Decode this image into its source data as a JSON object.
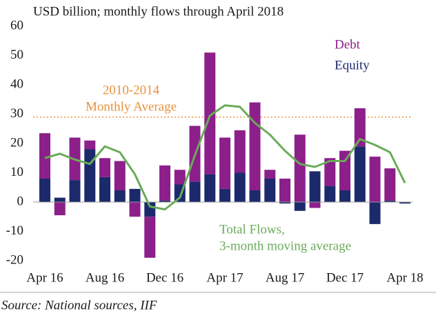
{
  "chart_data": {
    "type": "stacked_bar_line",
    "title": "USD billion; monthly flows through April 2018",
    "source": "Source: National sources, IIF",
    "categories": [
      "Apr 16",
      null,
      null,
      null,
      "Aug 16",
      null,
      null,
      null,
      "Dec 16",
      null,
      null,
      null,
      "Apr 17",
      null,
      null,
      null,
      "Aug 17",
      null,
      null,
      null,
      "Dec 17",
      null,
      null,
      null,
      "Apr 18"
    ],
    "series": [
      {
        "name": "Equity",
        "color": "#1c2a6c",
        "values": [
          8,
          1.5,
          7.5,
          18,
          8.5,
          4,
          4.5,
          -5,
          0.5,
          6,
          7,
          9.5,
          4.5,
          10,
          4,
          8,
          -0.5,
          -3,
          10.5,
          5.5,
          4,
          19,
          -7.5,
          0.5,
          -0.5
        ]
      },
      {
        "name": "Debt",
        "color": "#8c1f8a",
        "values": [
          15.5,
          -4.5,
          14.5,
          3,
          6.5,
          10,
          -5,
          -14,
          12,
          5,
          19,
          41.5,
          17.5,
          14.5,
          30,
          3,
          8,
          23,
          -2,
          9.5,
          13.5,
          13,
          15.5,
          11,
          0
        ]
      },
      {
        "name": [
          "Total Flows,",
          "3-month moving average"
        ],
        "type": "line",
        "color": "#6aab58",
        "values": [
          15,
          16.5,
          14.5,
          13,
          19,
          17,
          9.5,
          -1.5,
          -2.5,
          1.5,
          16,
          29.5,
          33,
          32.5,
          27,
          23,
          17.5,
          13,
          12,
          14,
          14,
          21.5,
          19.5,
          17,
          6.5
        ]
      }
    ],
    "average": {
      "label": [
        "2010-2014",
        "Monthly Average"
      ],
      "value": 29,
      "color": "#e8913c"
    },
    "ylim": [
      -20,
      60
    ],
    "yticks": [
      -20,
      -10,
      0,
      10,
      20,
      30,
      40,
      50,
      60
    ]
  }
}
